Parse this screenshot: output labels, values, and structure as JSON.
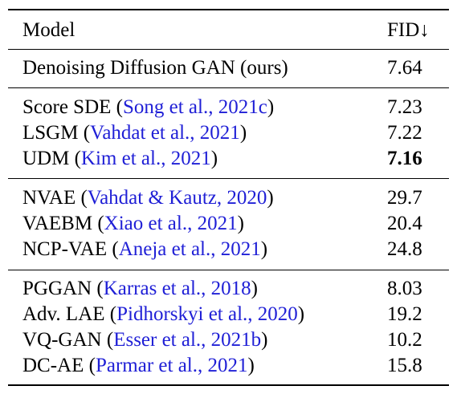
{
  "header": {
    "model": "Model",
    "fid": "FID↓"
  },
  "groups": [
    {
      "rows": [
        {
          "model": "Denoising Diffusion GAN (ours)",
          "cite": "",
          "fid": "7.64",
          "bold": false
        }
      ]
    },
    {
      "rows": [
        {
          "model": "Score SDE",
          "cite": "Song et al., 2021c",
          "fid": "7.23",
          "bold": false
        },
        {
          "model": "LSGM",
          "cite": "Vahdat et al., 2021",
          "fid": "7.22",
          "bold": false
        },
        {
          "model": "UDM",
          "cite": "Kim et al., 2021",
          "fid": "7.16",
          "bold": true
        }
      ]
    },
    {
      "rows": [
        {
          "model": "NVAE",
          "cite": "Vahdat & Kautz, 2020",
          "fid": "29.7",
          "bold": false
        },
        {
          "model": "VAEBM",
          "cite": "Xiao et al., 2021",
          "fid": "20.4",
          "bold": false
        },
        {
          "model": "NCP-VAE",
          "cite": "Aneja et al., 2021",
          "fid": "24.8",
          "bold": false
        }
      ]
    },
    {
      "rows": [
        {
          "model": "PGGAN",
          "cite": "Karras et al., 2018",
          "fid": "8.03",
          "bold": false
        },
        {
          "model": "Adv. LAE",
          "cite": "Pidhorskyi et al., 2020",
          "fid": "19.2",
          "bold": false
        },
        {
          "model": "VQ-GAN",
          "cite": "Esser et al., 2021b",
          "fid": "10.2",
          "bold": false
        },
        {
          "model": "DC-AE",
          "cite": "Parmar et al., 2021",
          "fid": "15.8",
          "bold": false
        }
      ]
    }
  ],
  "colors": {
    "citation": "#1f1fd6",
    "text": "#000000"
  }
}
